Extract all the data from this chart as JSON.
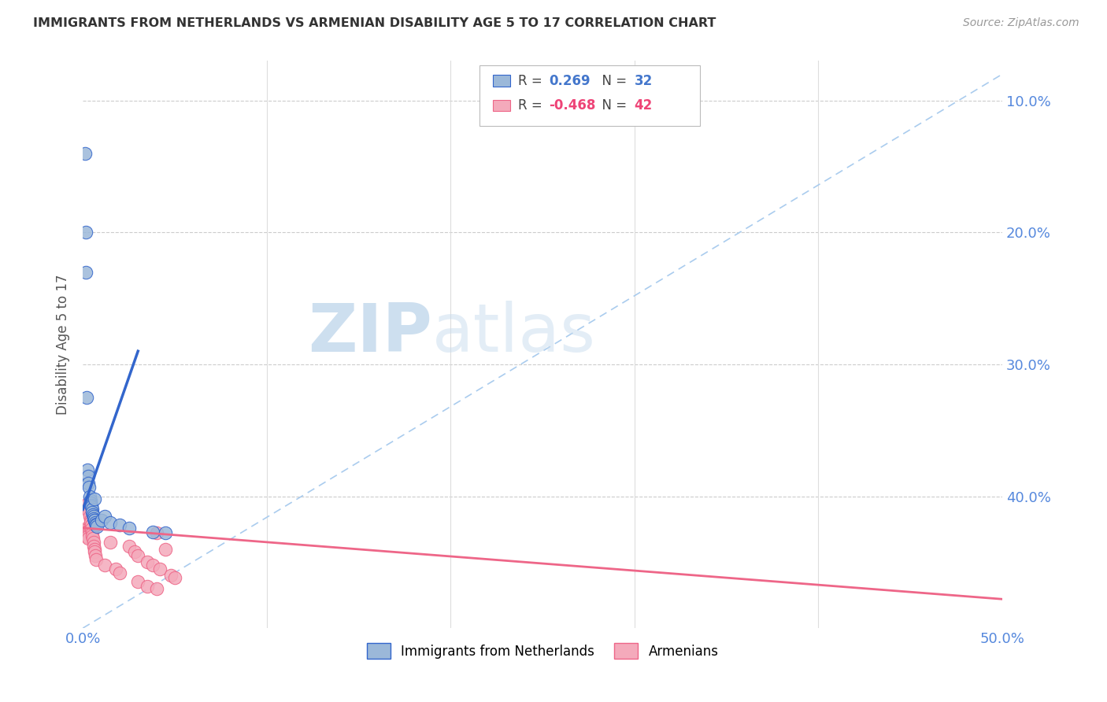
{
  "title": "IMMIGRANTS FROM NETHERLANDS VS ARMENIAN DISABILITY AGE 5 TO 17 CORRELATION CHART",
  "source": "Source: ZipAtlas.com",
  "ylabel": "Disability Age 5 to 17",
  "yticks_right": [
    "40.0%",
    "30.0%",
    "20.0%",
    "10.0%"
  ],
  "yticks_right_vals": [
    0.4,
    0.3,
    0.2,
    0.1
  ],
  "legend1_label": "Immigrants from Netherlands",
  "legend2_label": "Armenians",
  "r1": 0.269,
  "n1": 32,
  "r2": -0.468,
  "n2": 42,
  "blue_dot_color": "#9BB8D9",
  "pink_dot_color": "#F4AABB",
  "blue_line_color": "#3366CC",
  "pink_line_color": "#EE6688",
  "diag_line_color": "#AACCEE",
  "background_color": "#FFFFFF",
  "watermark_zip": "ZIP",
  "watermark_atlas": "atlas",
  "blue_dots": [
    [
      0.001,
      0.36
    ],
    [
      0.0015,
      0.3
    ],
    [
      0.0018,
      0.27
    ],
    [
      0.002,
      0.175
    ],
    [
      0.0025,
      0.12
    ],
    [
      0.0028,
      0.115
    ],
    [
      0.003,
      0.11
    ],
    [
      0.0035,
      0.107
    ],
    [
      0.0038,
      0.1
    ],
    [
      0.004,
      0.097
    ],
    [
      0.0042,
      0.095
    ],
    [
      0.0045,
      0.093
    ],
    [
      0.0048,
      0.092
    ],
    [
      0.005,
      0.09
    ],
    [
      0.0052,
      0.088
    ],
    [
      0.0055,
      0.086
    ],
    [
      0.0058,
      0.085
    ],
    [
      0.006,
      0.083
    ],
    [
      0.0062,
      0.082
    ],
    [
      0.0063,
      0.098
    ],
    [
      0.0065,
      0.082
    ],
    [
      0.0068,
      0.08
    ],
    [
      0.007,
      0.079
    ],
    [
      0.0072,
      0.078
    ],
    [
      0.0075,
      0.077
    ],
    [
      0.01,
      0.082
    ],
    [
      0.012,
      0.085
    ],
    [
      0.015,
      0.08
    ],
    [
      0.02,
      0.078
    ],
    [
      0.025,
      0.076
    ],
    [
      0.038,
      0.073
    ],
    [
      0.045,
      0.072
    ]
  ],
  "pink_dots": [
    [
      0.001,
      0.075
    ],
    [
      0.0012,
      0.074
    ],
    [
      0.0015,
      0.073
    ],
    [
      0.0018,
      0.072
    ],
    [
      0.002,
      0.071
    ],
    [
      0.0022,
      0.07
    ],
    [
      0.0025,
      0.069
    ],
    [
      0.0028,
      0.068
    ],
    [
      0.003,
      0.095
    ],
    [
      0.0032,
      0.092
    ],
    [
      0.0035,
      0.088
    ],
    [
      0.0038,
      0.085
    ],
    [
      0.004,
      0.082
    ],
    [
      0.0042,
      0.08
    ],
    [
      0.0045,
      0.078
    ],
    [
      0.0048,
      0.075
    ],
    [
      0.005,
      0.072
    ],
    [
      0.0052,
      0.07
    ],
    [
      0.0055,
      0.068
    ],
    [
      0.0058,
      0.065
    ],
    [
      0.006,
      0.062
    ],
    [
      0.0062,
      0.06
    ],
    [
      0.0065,
      0.058
    ],
    [
      0.0068,
      0.055
    ],
    [
      0.007,
      0.052
    ],
    [
      0.012,
      0.048
    ],
    [
      0.015,
      0.065
    ],
    [
      0.018,
      0.045
    ],
    [
      0.02,
      0.042
    ],
    [
      0.025,
      0.062
    ],
    [
      0.028,
      0.058
    ],
    [
      0.03,
      0.055
    ],
    [
      0.035,
      0.05
    ],
    [
      0.038,
      0.048
    ],
    [
      0.04,
      0.072
    ],
    [
      0.042,
      0.045
    ],
    [
      0.045,
      0.06
    ],
    [
      0.048,
      0.04
    ],
    [
      0.05,
      0.038
    ],
    [
      0.03,
      0.035
    ],
    [
      0.035,
      0.032
    ],
    [
      0.04,
      0.03
    ]
  ],
  "blue_line_x": [
    0.0,
    0.03
  ],
  "blue_line_y": [
    0.09,
    0.21
  ],
  "pink_line_x": [
    0.0,
    0.5
  ],
  "pink_line_y": [
    0.076,
    0.022
  ],
  "diag_line_x": [
    0.0,
    0.5
  ],
  "diag_line_y": [
    0.0,
    0.42
  ],
  "xlim": [
    0.0,
    0.5
  ],
  "ylim": [
    0.0,
    0.43
  ],
  "xtick_positions": [
    0.0,
    0.1,
    0.2,
    0.3,
    0.4,
    0.5
  ],
  "ytick_positions": [
    0.1,
    0.2,
    0.3,
    0.4
  ]
}
